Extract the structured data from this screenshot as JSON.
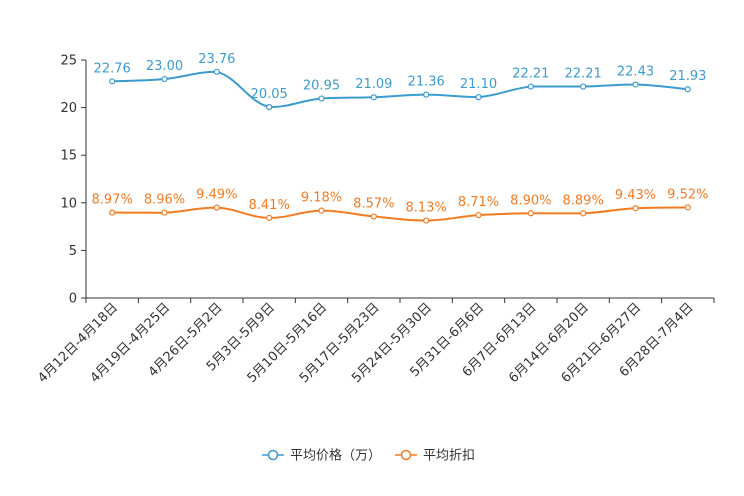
{
  "chart_data": {
    "type": "line",
    "title": "",
    "xlabel": "",
    "ylabel": "",
    "ylim": [
      0,
      25
    ],
    "yticks": [
      "0",
      "5",
      "10",
      "15",
      "20",
      "25"
    ],
    "categories": [
      "4月12日-4月18日",
      "4月19日-4月25日",
      "4月26日-5月2日",
      "5月3日-5月9日",
      "5月10日-5月16日",
      "5月17日-5月23日",
      "5月24日-5月30日",
      "5月31日-6月6日",
      "6月7日-6月13日",
      "6月14日-6月20日",
      "6月21日-6月27日",
      "6月28日-7月4日"
    ],
    "series": [
      {
        "name": "平均价格（万）",
        "color": "#3b9ccf",
        "values": [
          22.76,
          23.0,
          23.76,
          20.05,
          20.95,
          21.09,
          21.36,
          21.1,
          22.21,
          22.21,
          22.43,
          21.93
        ],
        "labels": [
          "22.76",
          "23.00",
          "23.76",
          "20.05",
          "20.95",
          "21.09",
          "21.36",
          "21.10",
          "22.21",
          "22.21",
          "22.43",
          "21.93"
        ]
      },
      {
        "name": "平均折扣",
        "color": "#f47b20",
        "values": [
          8.97,
          8.96,
          9.49,
          8.41,
          9.18,
          8.57,
          8.13,
          8.71,
          8.9,
          8.89,
          9.43,
          9.52
        ],
        "labels": [
          "8.97%",
          "8.96%",
          "9.49%",
          "8.41%",
          "9.18%",
          "8.57%",
          "8.13%",
          "8.71%",
          "8.90%",
          "8.89%",
          "9.43%",
          "9.52%"
        ]
      }
    ],
    "legend": "bottom-center",
    "grid": false
  }
}
